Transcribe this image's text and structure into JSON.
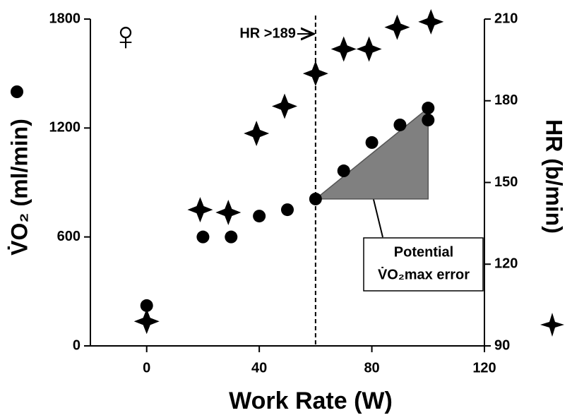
{
  "chart_data": {
    "type": "scatter",
    "symbol": "♀",
    "xlabel": "Work Rate (W)",
    "ylabel": "V̇O₂ (ml/min)",
    "y2label": "HR (b/min)",
    "xlim": [
      -20,
      120
    ],
    "xticks": [
      0,
      40,
      80,
      120
    ],
    "ylim": [
      0,
      1800
    ],
    "yticks": [
      0,
      600,
      1200,
      1800
    ],
    "y2lim": [
      90,
      210
    ],
    "y2ticks": [
      90,
      120,
      150,
      180,
      210
    ],
    "series": [
      {
        "marker": "circle",
        "color": "#000000",
        "x": [
          0,
          20,
          30,
          40,
          50,
          60,
          70,
          80,
          90,
          100,
          100
        ],
        "values": [
          222,
          600,
          600,
          715,
          750,
          809,
          964,
          1120,
          1217,
          1310,
          1244
        ]
      },
      {
        "marker": "star",
        "color": "#000000",
        "axis": "y2",
        "x": [
          0,
          19,
          29,
          39,
          49,
          60,
          70,
          79,
          89,
          101
        ],
        "values": [
          99,
          140,
          139,
          168,
          178,
          190,
          199,
          199,
          207,
          209
        ]
      }
    ],
    "annotations": {
      "hr_label": "HR >189",
      "vline_x": 60,
      "box_lines": [
        "Potential",
        "V̇O₂max error"
      ],
      "region": {
        "x": [
          60,
          100,
          100
        ],
        "y": [
          809,
          1310,
          809
        ]
      }
    }
  }
}
